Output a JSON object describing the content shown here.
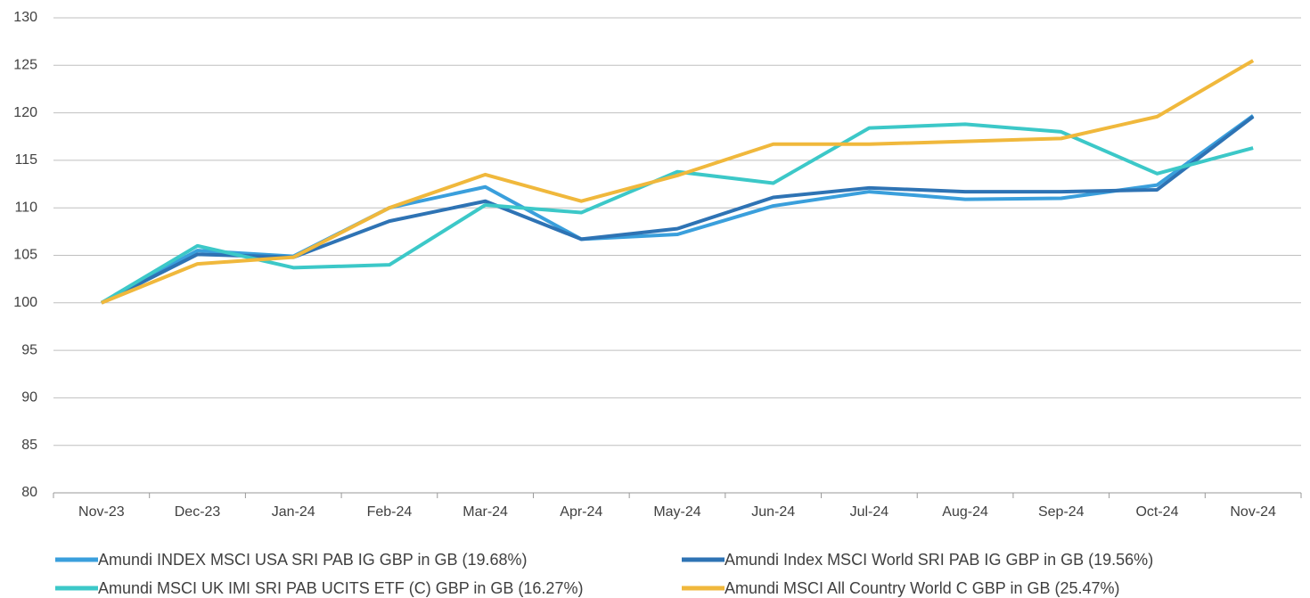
{
  "chart_data": {
    "type": "line",
    "categories": [
      "Nov-23",
      "Dec-23",
      "Jan-24",
      "Feb-24",
      "Mar-24",
      "Apr-24",
      "May-24",
      "Jun-24",
      "Jul-24",
      "Aug-24",
      "Sep-24",
      "Oct-24",
      "Nov-24"
    ],
    "series": [
      {
        "name": "Amundi INDEX MSCI USA SRI PAB IG GBP in GB (19.68%)",
        "color": "#3a9fdc",
        "values": [
          100,
          105.5,
          104.9,
          110,
          112.2,
          106.7,
          107.2,
          110.2,
          111.7,
          110.9,
          111,
          112.4,
          119.7
        ]
      },
      {
        "name": "Amundi Index MSCI World SRI PAB IG GBP in GB (19.56%)",
        "color": "#2e73b4",
        "values": [
          100,
          105.1,
          104.8,
          108.6,
          110.7,
          106.7,
          107.8,
          111.1,
          112.1,
          111.7,
          111.7,
          111.9,
          119.6
        ]
      },
      {
        "name": "Amundi MSCI UK IMI SRI PAB UCITS ETF (C) GBP in GB (16.27%)",
        "color": "#3cc8c8",
        "values": [
          100,
          106,
          103.7,
          104,
          110.3,
          109.5,
          113.8,
          112.6,
          118.4,
          118.8,
          118,
          113.6,
          116.3
        ]
      },
      {
        "name": "Amundi MSCI All Country World C GBP in GB (25.47%)",
        "color": "#f0b83c",
        "values": [
          100,
          104.1,
          104.8,
          110,
          113.5,
          110.7,
          113.4,
          116.7,
          116.7,
          117,
          117.3,
          119.6,
          125.5
        ]
      }
    ],
    "ylim": [
      80,
      130
    ],
    "yticks": [
      80,
      85,
      90,
      95,
      100,
      105,
      110,
      115,
      120,
      125,
      130
    ],
    "grid": true
  }
}
